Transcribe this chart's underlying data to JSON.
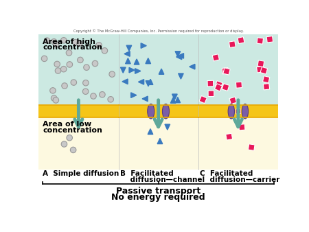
{
  "bg_top": "#cce9e2",
  "bg_bottom": "#fdf9e0",
  "membrane_color": "#f5c518",
  "membrane_border": "#e8a800",
  "arrow_color": "#5fa89a",
  "circle_color": "#c8c8c8",
  "circle_edge": "#999999",
  "triangle_color": "#3a7abf",
  "square_color": "#e8185a",
  "protein_color": "#7b5ea7",
  "protein_edge": "#5a3a7a",
  "copyright": "Copyright © The McGraw-Hill Companies, Inc. Permission required for reproduction or display.",
  "label_A": "A  Simple diffusion",
  "label_B_line1": "B  Facilitated",
  "label_B_line2": "    diffusion—channel",
  "label_C_line1": "C  Facilitated",
  "label_C_line2": "    diffusion—carrier",
  "passive_line1": "Passive transport",
  "passive_line2": "No energy required",
  "area_high_line1": "Area of high",
  "area_high_line2": "concentration",
  "area_low_line1": "Area of low",
  "area_low_line2": "concentration",
  "white_bg": "#ffffff",
  "panel_divider": "#bbbbbb"
}
